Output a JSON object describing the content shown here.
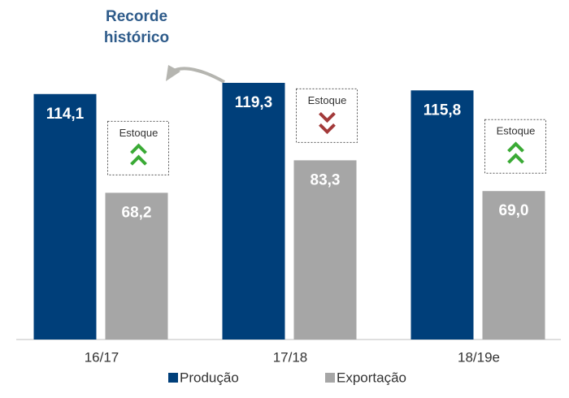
{
  "chart_data": {
    "type": "bar",
    "categories": [
      "16/17",
      "17/18",
      "18/19e"
    ],
    "series": [
      {
        "name": "Produção",
        "color": "#003f7a",
        "values": [
          114.1,
          119.3,
          115.8
        ],
        "value_labels": [
          "114,1",
          "119,3",
          "115,8"
        ]
      },
      {
        "name": "Exportação",
        "color": "#a6a6a6",
        "values": [
          68.2,
          83.3,
          69.0
        ],
        "value_labels": [
          "68,2",
          "83,3",
          "69,0"
        ]
      }
    ],
    "annotations": [
      {
        "text": "Estoque",
        "direction": "up"
      },
      {
        "text": "Estoque",
        "direction": "down"
      },
      {
        "text": "Estoque",
        "direction": "up"
      }
    ],
    "highlight": {
      "lines": [
        "Recorde",
        "histórico"
      ],
      "color": "#2e5b8a"
    },
    "legend": "bottom"
  }
}
